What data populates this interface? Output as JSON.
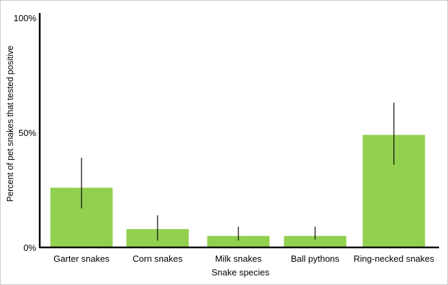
{
  "chart_data": {
    "type": "bar",
    "title": "",
    "xlabel": "Snake species",
    "ylabel": "Percent of pet snakes that tested positive",
    "categories": [
      "Garter snakes",
      "Corn snakes",
      "Milk snakes",
      "Ball pythons",
      "Ring-necked snakes"
    ],
    "values": [
      26,
      8,
      5,
      5,
      49
    ],
    "error_low": [
      17,
      3,
      3,
      3.5,
      36
    ],
    "error_high": [
      39,
      14,
      9,
      9,
      63
    ],
    "ylim": [
      0,
      100
    ],
    "yticks": [
      0,
      50,
      100
    ],
    "ytick_labels": [
      "0%",
      "50%",
      "100%"
    ],
    "grid": false,
    "legend": "none",
    "colors": {
      "bar": "#92d050",
      "axis": "#000000",
      "error_bar": "#000000"
    }
  }
}
